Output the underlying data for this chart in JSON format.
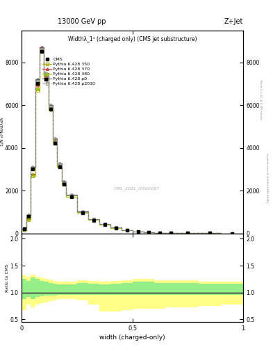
{
  "title_top": "13000 GeV pp",
  "title_right": "Z+Jet",
  "plot_title": "Widthλ_1¹ (charged only) (CMS jet substructure)",
  "xlabel": "width (charged-only)",
  "ylabel_main": "1/N d²N/dλdλ",
  "ylabel_ratio": "Ratio to CMS",
  "watermark": "CMS_2021_I1920187",
  "right_label_top": "Rivet 3.1.10, ≥ 3.1M events",
  "right_label_bot": "mcplots.cern.ch [arXiv:1306.3436]",
  "x_bins": [
    0.0,
    0.02,
    0.04,
    0.06,
    0.08,
    0.1,
    0.12,
    0.14,
    0.16,
    0.18,
    0.2,
    0.25,
    0.3,
    0.35,
    0.4,
    0.45,
    0.5,
    0.55,
    0.6,
    0.65,
    0.7,
    0.8,
    0.9,
    1.0
  ],
  "cms_y": [
    200,
    800,
    3000,
    7000,
    8500,
    7200,
    5800,
    4200,
    3100,
    2300,
    1700,
    950,
    620,
    400,
    240,
    140,
    75,
    45,
    25,
    12,
    8,
    4,
    1
  ],
  "py350_y": [
    160,
    650,
    2700,
    6700,
    8600,
    7400,
    5900,
    4350,
    3200,
    2380,
    1760,
    990,
    650,
    420,
    260,
    155,
    82,
    50,
    28,
    13,
    9,
    4,
    1
  ],
  "py370_y": [
    170,
    700,
    2800,
    6900,
    8700,
    7350,
    5850,
    4300,
    3150,
    2330,
    1720,
    960,
    635,
    410,
    252,
    150,
    80,
    48,
    27,
    13,
    8,
    4,
    1
  ],
  "py380_y": [
    165,
    670,
    2750,
    6800,
    8550,
    7250,
    5780,
    4250,
    3120,
    2300,
    1700,
    950,
    625,
    405,
    248,
    148,
    79,
    47,
    26,
    12,
    8,
    4,
    1
  ],
  "pyp0_y": [
    210,
    860,
    3100,
    7200,
    8700,
    7500,
    6000,
    4450,
    3280,
    2430,
    1810,
    1020,
    680,
    445,
    275,
    165,
    88,
    54,
    30,
    15,
    10,
    5,
    1
  ],
  "pyp2010_y": [
    190,
    820,
    3050,
    7100,
    8620,
    7420,
    5920,
    4380,
    3220,
    2390,
    1780,
    1000,
    665,
    435,
    268,
    160,
    85,
    52,
    29,
    14,
    9,
    5,
    1
  ],
  "ratio_green_upper": [
    1.25,
    1.22,
    1.28,
    1.25,
    1.22,
    1.2,
    1.18,
    1.17,
    1.15,
    1.15,
    1.15,
    1.18,
    1.17,
    1.15,
    1.17,
    1.18,
    1.2,
    1.2,
    1.18,
    1.18,
    1.18,
    1.16,
    1.16
  ],
  "ratio_green_lower": [
    0.88,
    0.92,
    0.88,
    0.92,
    0.93,
    0.94,
    0.95,
    0.95,
    0.96,
    0.96,
    0.96,
    0.96,
    0.96,
    0.96,
    0.96,
    0.96,
    0.96,
    0.96,
    0.96,
    0.96,
    0.96,
    0.96,
    0.96
  ],
  "ratio_yellow_upper": [
    1.32,
    1.3,
    1.33,
    1.3,
    1.28,
    1.26,
    1.24,
    1.22,
    1.2,
    1.2,
    1.2,
    1.23,
    1.22,
    1.2,
    1.22,
    1.23,
    1.25,
    1.25,
    1.23,
    1.23,
    1.23,
    1.2,
    1.2
  ],
  "ratio_yellow_lower": [
    0.68,
    0.78,
    0.72,
    0.78,
    0.8,
    0.82,
    0.84,
    0.86,
    0.88,
    0.88,
    0.88,
    0.86,
    0.78,
    0.65,
    0.65,
    0.68,
    0.7,
    0.7,
    0.7,
    0.72,
    0.72,
    0.75,
    0.78
  ],
  "colors": {
    "cms": "#000000",
    "py350": "#aaaa00",
    "py370": "#cc3333",
    "py380": "#88cc00",
    "pyp0": "#666666",
    "pyp2010": "#999999"
  },
  "ylim_main": [
    0,
    9500
  ],
  "ylim_ratio": [
    0.45,
    2.1
  ],
  "ratio_yticks": [
    0.5,
    1.0,
    1.5,
    2.0
  ],
  "main_yticks": [
    0,
    2000,
    4000,
    6000,
    8000
  ],
  "xticks": [
    0.0,
    0.5,
    1.0
  ],
  "xticklabels": [
    "0",
    "0.5",
    "1"
  ]
}
